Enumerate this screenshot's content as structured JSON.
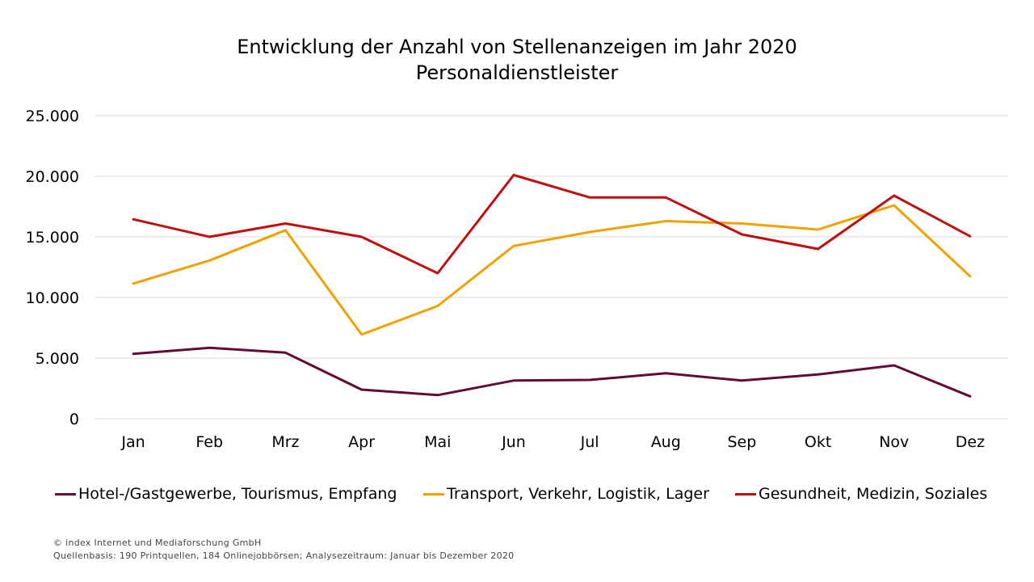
{
  "colors": {
    "hotel": "#650A35",
    "transport": "#EFA200",
    "gesundheit": "#BE1010",
    "grid": "#D9D9D9"
  },
  "footer": {
    "copyright": "© index Internet und Mediaforschung GmbH",
    "source": "Quellenbasis: 190 Printquellen, 184 Onlinejobbörsen; Analysezeitraum: Januar bis Dezember 2020"
  },
  "chart_data": {
    "type": "line",
    "title": "Entwicklung der Anzahl von Stellenanzeigen im Jahr 2020",
    "subtitle": "Personaldienstleister",
    "xlabel": "",
    "ylabel": "",
    "ylim": [
      0,
      25000
    ],
    "yticks": [
      0,
      5000,
      10000,
      15000,
      20000,
      25000
    ],
    "ytick_labels": [
      "0",
      "5.000",
      "10.000",
      "15.000",
      "20.000",
      "25.000"
    ],
    "grid": true,
    "legend_position": "bottom",
    "categories": [
      "Jan",
      "Feb",
      "Mrz",
      "Apr",
      "Mai",
      "Jun",
      "Jul",
      "Aug",
      "Sep",
      "Okt",
      "Nov",
      "Dez"
    ],
    "series": [
      {
        "name": "Hotel-/Gastgewerbe, Tourismus, Empfang",
        "color_key": "hotel",
        "values": [
          5350,
          5850,
          5450,
          2400,
          1950,
          3150,
          3200,
          3750,
          3150,
          3650,
          4400,
          1850
        ]
      },
      {
        "name": "Transport, Verkehr, Logistik, Lager",
        "color_key": "transport",
        "values": [
          11150,
          13050,
          15550,
          6950,
          9300,
          14250,
          15400,
          16300,
          16100,
          15600,
          17600,
          11750
        ]
      },
      {
        "name": "Gesundheit, Medizin, Soziales",
        "color_key": "gesundheit",
        "values": [
          16450,
          15000,
          16100,
          15000,
          12000,
          20100,
          18250,
          18250,
          15200,
          14000,
          18400,
          15050
        ]
      }
    ]
  }
}
